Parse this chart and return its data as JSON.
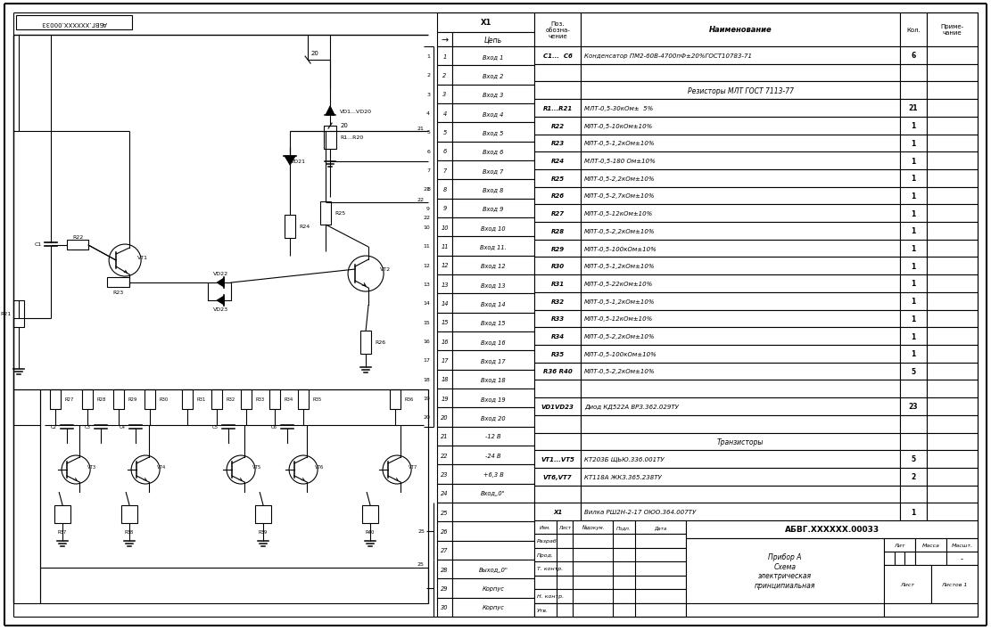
{
  "bg_color": "#ffffff",
  "line_color": "#000000",
  "connector_rows": [
    [
      "1",
      "Вход 1"
    ],
    [
      "2",
      "Вход 2"
    ],
    [
      "3",
      "Вход 3"
    ],
    [
      "4",
      "Вход 4"
    ],
    [
      "5",
      "Вход 5"
    ],
    [
      "6",
      "Вход 6"
    ],
    [
      "7",
      "Вход 7"
    ],
    [
      "8",
      "Вход 8"
    ],
    [
      "9",
      "Вход 9"
    ],
    [
      "10",
      "Вход 10"
    ],
    [
      "11",
      "Вход 11."
    ],
    [
      "12",
      "Вход 12"
    ],
    [
      "13",
      "Вход 13"
    ],
    [
      "14",
      "Вход 14"
    ],
    [
      "15",
      "Вход 15"
    ],
    [
      "16",
      "Вход 16"
    ],
    [
      "17",
      "Вход 17"
    ],
    [
      "18",
      "Вход 18"
    ],
    [
      "19",
      "Вход 19"
    ],
    [
      "20",
      "Вход 20"
    ],
    [
      "21",
      "-12 В"
    ],
    [
      "22",
      "-24 В"
    ],
    [
      "23",
      "+6,3 В"
    ],
    [
      "24",
      "Вход„0\""
    ],
    [
      "25",
      ""
    ],
    [
      "26",
      ""
    ],
    [
      "27",
      ""
    ],
    [
      "28",
      "Выход„0\""
    ],
    [
      "29",
      "Корпус"
    ],
    [
      "30",
      "Корпус"
    ]
  ],
  "parts_rows": [
    [
      "C1...  C6",
      "Конденсатор ПМ2-60В-4700пФ±20%ГОСТ10783-71",
      "6",
      ""
    ],
    [
      "",
      "",
      "",
      ""
    ],
    [
      "",
      "Резисторы МЛТ ГОСТ 7113-77",
      "",
      ""
    ],
    [
      "R1...R21",
      "МЛТ-0,5-30кОм±  5%",
      "21",
      ""
    ],
    [
      "R22",
      "МЛТ-0,5-10кОм±10%",
      "1",
      ""
    ],
    [
      "R23",
      "МЛТ-0,5-1,2кОм±10%",
      "1",
      ""
    ],
    [
      "R24",
      "МЛТ-0,5-180 Ом±10%",
      "1",
      ""
    ],
    [
      "R25",
      "МЛТ-0,5-2,2кОм±10%",
      "1",
      ""
    ],
    [
      "R26",
      "МЛТ-0,5-2,7кОм±10%",
      "1",
      ""
    ],
    [
      "R27",
      "МЛТ-0,5-12кОм±10%",
      "1",
      ""
    ],
    [
      "R28",
      "МЛТ-0,5-2,2кОм±10%",
      "1",
      ""
    ],
    [
      "R29",
      "МЛТ-0,5-100кОм±10%",
      "1",
      ""
    ],
    [
      "R30",
      "МЛТ-0,5-1,2кОм±10%",
      "1",
      ""
    ],
    [
      "R31",
      "МЛТ-0,5-22кОм±10%",
      "1",
      ""
    ],
    [
      "R32",
      "МЛТ-0,5-1,2кОм±10%",
      "1",
      ""
    ],
    [
      "R33",
      "МЛТ-0,5-12кОм±10%",
      "1",
      ""
    ],
    [
      "R34",
      "МЛТ-0,5-2,2кОм±10%",
      "1",
      ""
    ],
    [
      "R35",
      "МЛТ-0,5-100кОм±10%",
      "1",
      ""
    ],
    [
      "R36 R40",
      "МЛТ-0,5-2,2кОм±10%",
      "5",
      ""
    ],
    [
      "",
      "",
      "",
      ""
    ],
    [
      "VD1VD23",
      "Диод КД522А ВРЗ.362.029ТУ",
      "23",
      ""
    ],
    [
      "",
      "",
      "",
      ""
    ],
    [
      "",
      "Транзисторы",
      "",
      ""
    ],
    [
      "VT1...VT5",
      "КТ203Б ЩЬЮ.336.001ТУ",
      "5",
      ""
    ],
    [
      "VT6,VT7",
      "КТ118А ЖКЗ.365.238ТУ",
      "2",
      ""
    ],
    [
      "",
      "",
      "",
      ""
    ],
    [
      "X1",
      "Вилка РШ2Н-2-17 ОЮО.364.007ТУ",
      "1",
      ""
    ]
  ],
  "stamp_title": "АБВГ.XXXXXX.00033",
  "doc_name": "Прибор А\nСхема\nэлектрическая\nпринципиальная",
  "schematic_stamp": "АБВГ.XXXXXX.00033"
}
